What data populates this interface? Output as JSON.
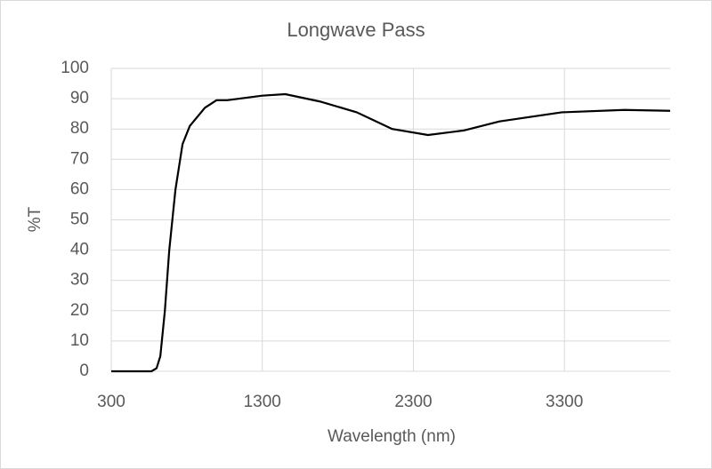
{
  "chart_data": {
    "type": "line",
    "title": "Longwave Pass",
    "x_label": "Wavelength (nm)",
    "y_label": "%T",
    "x": [
      300,
      450,
      566,
      600,
      625,
      655,
      684,
      725,
      772,
      820,
      920,
      997,
      1068,
      1300,
      1452,
      1688,
      1925,
      2160,
      2397,
      2633,
      2870,
      3283,
      3696,
      4000
    ],
    "series": [
      {
        "name": "%T",
        "color": "#000000",
        "values": [
          0,
          0,
          0,
          1,
          5,
          20,
          40,
          60,
          75,
          81,
          87,
          89.5,
          89.5,
          91,
          91.5,
          89,
          85.5,
          80,
          78,
          79.5,
          82.5,
          85.5,
          86.3,
          86
        ]
      }
    ],
    "xlim": [
      300,
      4000
    ],
    "xticks": [
      300,
      1300,
      2300,
      3300
    ],
    "ylim": [
      0,
      100
    ],
    "yticks": [
      0,
      10,
      20,
      30,
      40,
      50,
      60,
      70,
      80,
      90,
      100
    ],
    "grid": true
  }
}
